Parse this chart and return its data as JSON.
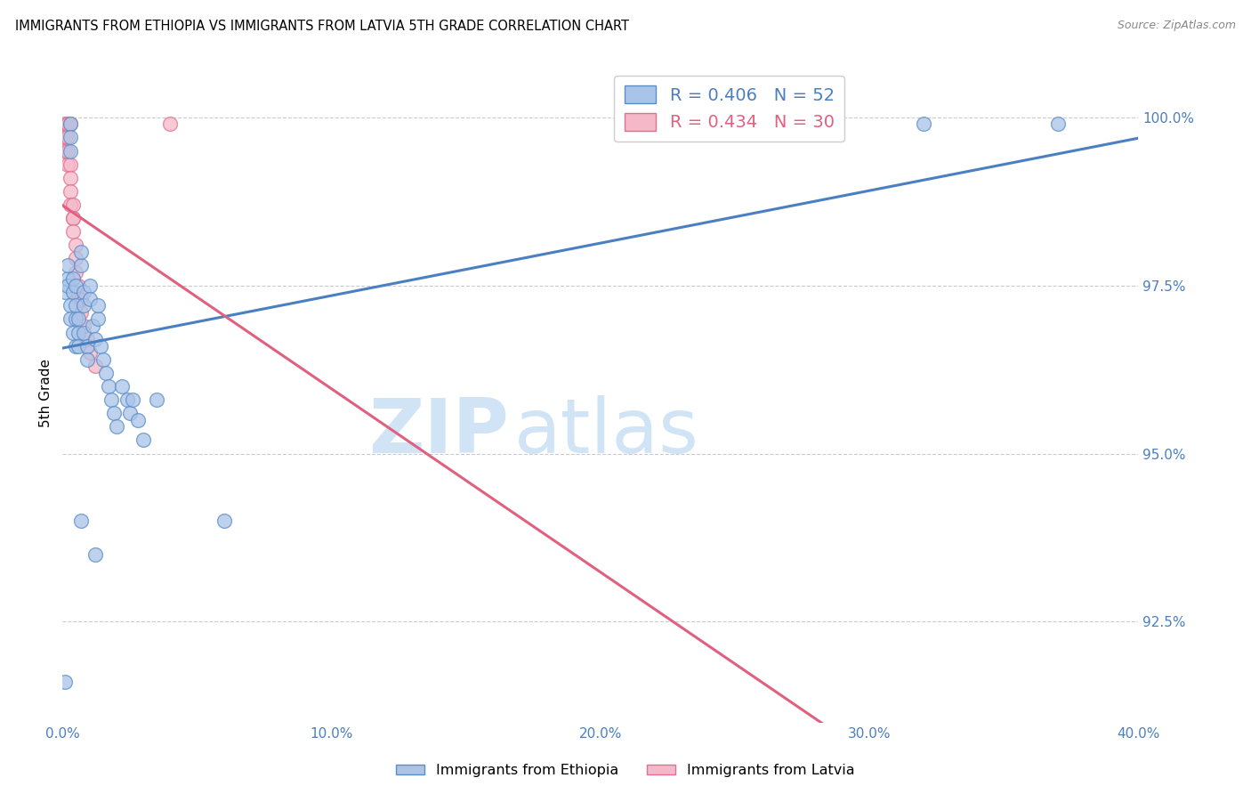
{
  "title": "IMMIGRANTS FROM ETHIOPIA VS IMMIGRANTS FROM LATVIA 5TH GRADE CORRELATION CHART",
  "source": "Source: ZipAtlas.com",
  "ylabel": "5th Grade",
  "legend1": "Immigrants from Ethiopia",
  "legend2": "Immigrants from Latvia",
  "r_ethiopia": 0.406,
  "n_ethiopia": 52,
  "r_latvia": 0.434,
  "n_latvia": 30,
  "xlim": [
    0.0,
    0.4
  ],
  "ylim": [
    0.91,
    1.008
  ],
  "yticks": [
    0.925,
    0.95,
    0.975,
    1.0
  ],
  "ytick_labels": [
    "92.5%",
    "95.0%",
    "97.5%",
    "100.0%"
  ],
  "xticks": [
    0.0,
    0.1,
    0.2,
    0.3,
    0.4
  ],
  "xtick_labels": [
    "0.0%",
    "10.0%",
    "20.0%",
    "30.0%",
    "40.0%"
  ],
  "color_ethiopia_fill": "#aac4e8",
  "color_ethiopia_edge": "#5b8ec9",
  "color_latvia_fill": "#f5b8c8",
  "color_latvia_edge": "#e07090",
  "line_color_ethiopia": "#4a7fc1",
  "line_color_latvia": "#e06080",
  "watermark_zip": "ZIP",
  "watermark_atlas": "atlas",
  "watermark_color": "#d0e4f5",
  "ethiopia_x": [
    0.001,
    0.001,
    0.002,
    0.002,
    0.002,
    0.003,
    0.003,
    0.003,
    0.003,
    0.003,
    0.004,
    0.004,
    0.004,
    0.005,
    0.005,
    0.005,
    0.005,
    0.006,
    0.006,
    0.006,
    0.007,
    0.007,
    0.008,
    0.008,
    0.008,
    0.009,
    0.009,
    0.01,
    0.01,
    0.011,
    0.012,
    0.013,
    0.013,
    0.014,
    0.015,
    0.016,
    0.017,
    0.018,
    0.019,
    0.02,
    0.022,
    0.024,
    0.025,
    0.026,
    0.028,
    0.03,
    0.035,
    0.06,
    0.32,
    0.37,
    0.007,
    0.012
  ],
  "ethiopia_y": [
    0.916,
    0.974,
    0.976,
    0.978,
    0.975,
    0.999,
    0.997,
    0.995,
    0.972,
    0.97,
    0.974,
    0.976,
    0.968,
    0.972,
    0.97,
    0.966,
    0.975,
    0.968,
    0.97,
    0.966,
    0.978,
    0.98,
    0.974,
    0.972,
    0.968,
    0.966,
    0.964,
    0.975,
    0.973,
    0.969,
    0.967,
    0.97,
    0.972,
    0.966,
    0.964,
    0.962,
    0.96,
    0.958,
    0.956,
    0.954,
    0.96,
    0.958,
    0.956,
    0.958,
    0.955,
    0.952,
    0.958,
    0.94,
    0.999,
    0.999,
    0.94,
    0.935
  ],
  "latvia_x": [
    0.001,
    0.001,
    0.001,
    0.001,
    0.002,
    0.002,
    0.002,
    0.002,
    0.002,
    0.003,
    0.003,
    0.003,
    0.003,
    0.003,
    0.004,
    0.004,
    0.004,
    0.004,
    0.005,
    0.005,
    0.005,
    0.006,
    0.006,
    0.007,
    0.007,
    0.008,
    0.009,
    0.01,
    0.012,
    0.04
  ],
  "latvia_y": [
    0.999,
    0.997,
    0.997,
    0.995,
    0.999,
    0.997,
    0.995,
    0.993,
    0.999,
    0.993,
    0.991,
    0.989,
    0.987,
    0.999,
    0.985,
    0.987,
    0.985,
    0.983,
    0.981,
    0.979,
    0.977,
    0.975,
    0.973,
    0.971,
    0.973,
    0.969,
    0.967,
    0.965,
    0.963,
    0.999
  ]
}
